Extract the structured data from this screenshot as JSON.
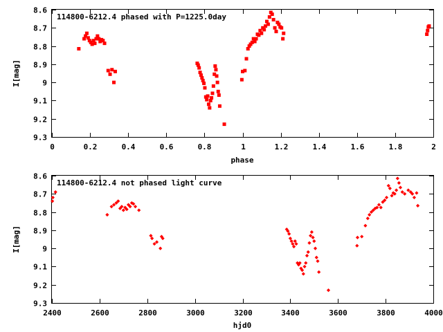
{
  "chart_data": [
    {
      "type": "scatter",
      "title": "114800-6212.4 phased with P=1225.0day",
      "xlabel": "phase",
      "ylabel": "I[mag]",
      "xlim": [
        0,
        2
      ],
      "ylim": [
        8.6,
        9.3
      ],
      "y_inverted": true,
      "grid": false,
      "xticks": [
        "0",
        "0.2",
        "0.4",
        "0.6",
        "0.8",
        "1",
        "1.2",
        "1.4",
        "1.6",
        "1.8",
        "2"
      ],
      "yticks": [
        "8.6",
        "8.7",
        "8.8",
        "8.9",
        "9",
        "9.1",
        "9.2",
        "9.3"
      ],
      "marker": "filled-square",
      "color": "#ff0000",
      "points": [
        {
          "x": 0.141,
          "y": 8.815
        },
        {
          "x": 0.169,
          "y": 8.76
        },
        {
          "x": 0.176,
          "y": 8.745
        },
        {
          "x": 0.183,
          "y": 8.73
        },
        {
          "x": 0.19,
          "y": 8.755
        },
        {
          "x": 0.197,
          "y": 8.77
        },
        {
          "x": 0.204,
          "y": 8.78
        },
        {
          "x": 0.211,
          "y": 8.79
        },
        {
          "x": 0.218,
          "y": 8.77
        },
        {
          "x": 0.225,
          "y": 8.785
        },
        {
          "x": 0.232,
          "y": 8.76
        },
        {
          "x": 0.239,
          "y": 8.745
        },
        {
          "x": 0.246,
          "y": 8.76
        },
        {
          "x": 0.253,
          "y": 8.775
        },
        {
          "x": 0.26,
          "y": 8.765
        },
        {
          "x": 0.268,
          "y": 8.77
        },
        {
          "x": 0.276,
          "y": 8.785
        },
        {
          "x": 0.295,
          "y": 8.935
        },
        {
          "x": 0.305,
          "y": 8.955
        },
        {
          "x": 0.315,
          "y": 8.93
        },
        {
          "x": 0.325,
          "y": 9.0
        },
        {
          "x": 0.332,
          "y": 8.94
        },
        {
          "x": 0.762,
          "y": 8.895
        },
        {
          "x": 0.767,
          "y": 8.905
        },
        {
          "x": 0.772,
          "y": 8.92
        },
        {
          "x": 0.777,
          "y": 8.945
        },
        {
          "x": 0.782,
          "y": 8.96
        },
        {
          "x": 0.787,
          "y": 8.975
        },
        {
          "x": 0.792,
          "y": 8.99
        },
        {
          "x": 0.797,
          "y": 9.005
        },
        {
          "x": 0.802,
          "y": 9.03
        },
        {
          "x": 0.807,
          "y": 9.08
        },
        {
          "x": 0.812,
          "y": 9.095
        },
        {
          "x": 0.817,
          "y": 9.075
        },
        {
          "x": 0.822,
          "y": 9.12
        },
        {
          "x": 0.827,
          "y": 9.14
        },
        {
          "x": 0.832,
          "y": 9.1
        },
        {
          "x": 0.837,
          "y": 9.085
        },
        {
          "x": 0.842,
          "y": 9.06
        },
        {
          "x": 0.847,
          "y": 9.02
        },
        {
          "x": 0.852,
          "y": 8.955
        },
        {
          "x": 0.856,
          "y": 8.91
        },
        {
          "x": 0.86,
          "y": 8.93
        },
        {
          "x": 0.864,
          "y": 8.965
        },
        {
          "x": 0.868,
          "y": 9.0
        },
        {
          "x": 0.872,
          "y": 9.05
        },
        {
          "x": 0.876,
          "y": 9.07
        },
        {
          "x": 0.88,
          "y": 9.13
        },
        {
          "x": 0.904,
          "y": 9.23
        },
        {
          "x": 0.996,
          "y": 8.985
        },
        {
          "x": 1.0,
          "y": 8.94
        },
        {
          "x": 1.012,
          "y": 8.935
        },
        {
          "x": 1.02,
          "y": 8.87
        },
        {
          "x": 1.028,
          "y": 8.815
        },
        {
          "x": 1.035,
          "y": 8.8
        },
        {
          "x": 1.042,
          "y": 8.79
        },
        {
          "x": 1.05,
          "y": 8.78
        },
        {
          "x": 1.057,
          "y": 8.76
        },
        {
          "x": 1.064,
          "y": 8.775
        },
        {
          "x": 1.071,
          "y": 8.76
        },
        {
          "x": 1.078,
          "y": 8.735
        },
        {
          "x": 1.085,
          "y": 8.74
        },
        {
          "x": 1.092,
          "y": 8.715
        },
        {
          "x": 1.099,
          "y": 8.73
        },
        {
          "x": 1.106,
          "y": 8.7
        },
        {
          "x": 1.113,
          "y": 8.71
        },
        {
          "x": 1.12,
          "y": 8.69
        },
        {
          "x": 1.127,
          "y": 8.665
        },
        {
          "x": 1.134,
          "y": 8.68
        },
        {
          "x": 1.141,
          "y": 8.64
        },
        {
          "x": 1.148,
          "y": 8.615
        },
        {
          "x": 1.155,
          "y": 8.625
        },
        {
          "x": 1.162,
          "y": 8.655
        },
        {
          "x": 1.169,
          "y": 8.7
        },
        {
          "x": 1.176,
          "y": 8.72
        },
        {
          "x": 1.183,
          "y": 8.67
        },
        {
          "x": 1.19,
          "y": 8.68
        },
        {
          "x": 1.197,
          "y": 8.695
        },
        {
          "x": 1.204,
          "y": 8.7
        },
        {
          "x": 1.211,
          "y": 8.76
        },
        {
          "x": 1.215,
          "y": 8.73
        },
        {
          "x": 1.966,
          "y": 8.735
        },
        {
          "x": 1.97,
          "y": 8.715
        },
        {
          "x": 1.974,
          "y": 8.695
        },
        {
          "x": 1.978,
          "y": 8.69
        }
      ]
    },
    {
      "type": "scatter",
      "title": "114800-6212.4 not phased light curve",
      "xlabel": "hjd0",
      "ylabel": "I[mag]",
      "xlim": [
        2400,
        4000
      ],
      "ylim": [
        8.6,
        9.3
      ],
      "y_inverted": true,
      "grid": false,
      "xticks": [
        "2400",
        "2600",
        "2800",
        "3000",
        "3200",
        "3400",
        "3600",
        "3800",
        "4000"
      ],
      "yticks": [
        "8.6",
        "8.7",
        "8.8",
        "8.9",
        "9",
        "9.1",
        "9.2",
        "9.3"
      ],
      "marker": "diamond",
      "color": "#ff0000",
      "points": [
        {
          "x": 2402,
          "y": 8.74
        },
        {
          "x": 2404,
          "y": 8.72
        },
        {
          "x": 2415,
          "y": 8.69
        },
        {
          "x": 2632,
          "y": 8.815
        },
        {
          "x": 2650,
          "y": 8.77
        },
        {
          "x": 2660,
          "y": 8.76
        },
        {
          "x": 2670,
          "y": 8.75
        },
        {
          "x": 2678,
          "y": 8.74
        },
        {
          "x": 2686,
          "y": 8.78
        },
        {
          "x": 2693,
          "y": 8.77
        },
        {
          "x": 2700,
          "y": 8.79
        },
        {
          "x": 2707,
          "y": 8.775
        },
        {
          "x": 2714,
          "y": 8.785
        },
        {
          "x": 2721,
          "y": 8.76
        },
        {
          "x": 2728,
          "y": 8.77
        },
        {
          "x": 2735,
          "y": 8.75
        },
        {
          "x": 2742,
          "y": 8.755
        },
        {
          "x": 2750,
          "y": 8.77
        },
        {
          "x": 2765,
          "y": 8.79
        },
        {
          "x": 2815,
          "y": 8.93
        },
        {
          "x": 2820,
          "y": 8.945
        },
        {
          "x": 2830,
          "y": 8.975
        },
        {
          "x": 2840,
          "y": 8.965
        },
        {
          "x": 2855,
          "y": 9.0
        },
        {
          "x": 2860,
          "y": 8.935
        },
        {
          "x": 2865,
          "y": 8.945
        },
        {
          "x": 3385,
          "y": 8.895
        },
        {
          "x": 3390,
          "y": 8.905
        },
        {
          "x": 3395,
          "y": 8.92
        },
        {
          "x": 3400,
          "y": 8.945
        },
        {
          "x": 3405,
          "y": 8.96
        },
        {
          "x": 3410,
          "y": 8.975
        },
        {
          "x": 3415,
          "y": 8.99
        },
        {
          "x": 3420,
          "y": 8.96
        },
        {
          "x": 3425,
          "y": 8.975
        },
        {
          "x": 3430,
          "y": 9.08
        },
        {
          "x": 3435,
          "y": 9.09
        },
        {
          "x": 3440,
          "y": 9.08
        },
        {
          "x": 3445,
          "y": 9.11
        },
        {
          "x": 3450,
          "y": 9.12
        },
        {
          "x": 3455,
          "y": 9.14
        },
        {
          "x": 3460,
          "y": 9.1
        },
        {
          "x": 3465,
          "y": 9.08
        },
        {
          "x": 3470,
          "y": 9.04
        },
        {
          "x": 3475,
          "y": 9.02
        },
        {
          "x": 3480,
          "y": 8.97
        },
        {
          "x": 3485,
          "y": 8.93
        },
        {
          "x": 3490,
          "y": 8.91
        },
        {
          "x": 3495,
          "y": 8.94
        },
        {
          "x": 3500,
          "y": 8.96
        },
        {
          "x": 3505,
          "y": 9.0
        },
        {
          "x": 3510,
          "y": 9.05
        },
        {
          "x": 3515,
          "y": 9.07
        },
        {
          "x": 3520,
          "y": 9.13
        },
        {
          "x": 3560,
          "y": 9.23
        },
        {
          "x": 3680,
          "y": 8.985
        },
        {
          "x": 3682,
          "y": 8.94
        },
        {
          "x": 3700,
          "y": 8.935
        },
        {
          "x": 3715,
          "y": 8.875
        },
        {
          "x": 3725,
          "y": 8.835
        },
        {
          "x": 3732,
          "y": 8.815
        },
        {
          "x": 3740,
          "y": 8.8
        },
        {
          "x": 3748,
          "y": 8.79
        },
        {
          "x": 3756,
          "y": 8.78
        },
        {
          "x": 3764,
          "y": 8.775
        },
        {
          "x": 3772,
          "y": 8.76
        },
        {
          "x": 3780,
          "y": 8.775
        },
        {
          "x": 3788,
          "y": 8.745
        },
        {
          "x": 3796,
          "y": 8.735
        },
        {
          "x": 3804,
          "y": 8.72
        },
        {
          "x": 3812,
          "y": 8.655
        },
        {
          "x": 3818,
          "y": 8.67
        },
        {
          "x": 3826,
          "y": 8.71
        },
        {
          "x": 3832,
          "y": 8.695
        },
        {
          "x": 3838,
          "y": 8.7
        },
        {
          "x": 3845,
          "y": 8.68
        },
        {
          "x": 3850,
          "y": 8.615
        },
        {
          "x": 3856,
          "y": 8.64
        },
        {
          "x": 3862,
          "y": 8.665
        },
        {
          "x": 3870,
          "y": 8.69
        },
        {
          "x": 3880,
          "y": 8.7
        },
        {
          "x": 3895,
          "y": 8.68
        },
        {
          "x": 3905,
          "y": 8.69
        },
        {
          "x": 3912,
          "y": 8.7
        },
        {
          "x": 3920,
          "y": 8.72
        },
        {
          "x": 3930,
          "y": 8.695
        },
        {
          "x": 3935,
          "y": 8.765
        }
      ]
    }
  ]
}
